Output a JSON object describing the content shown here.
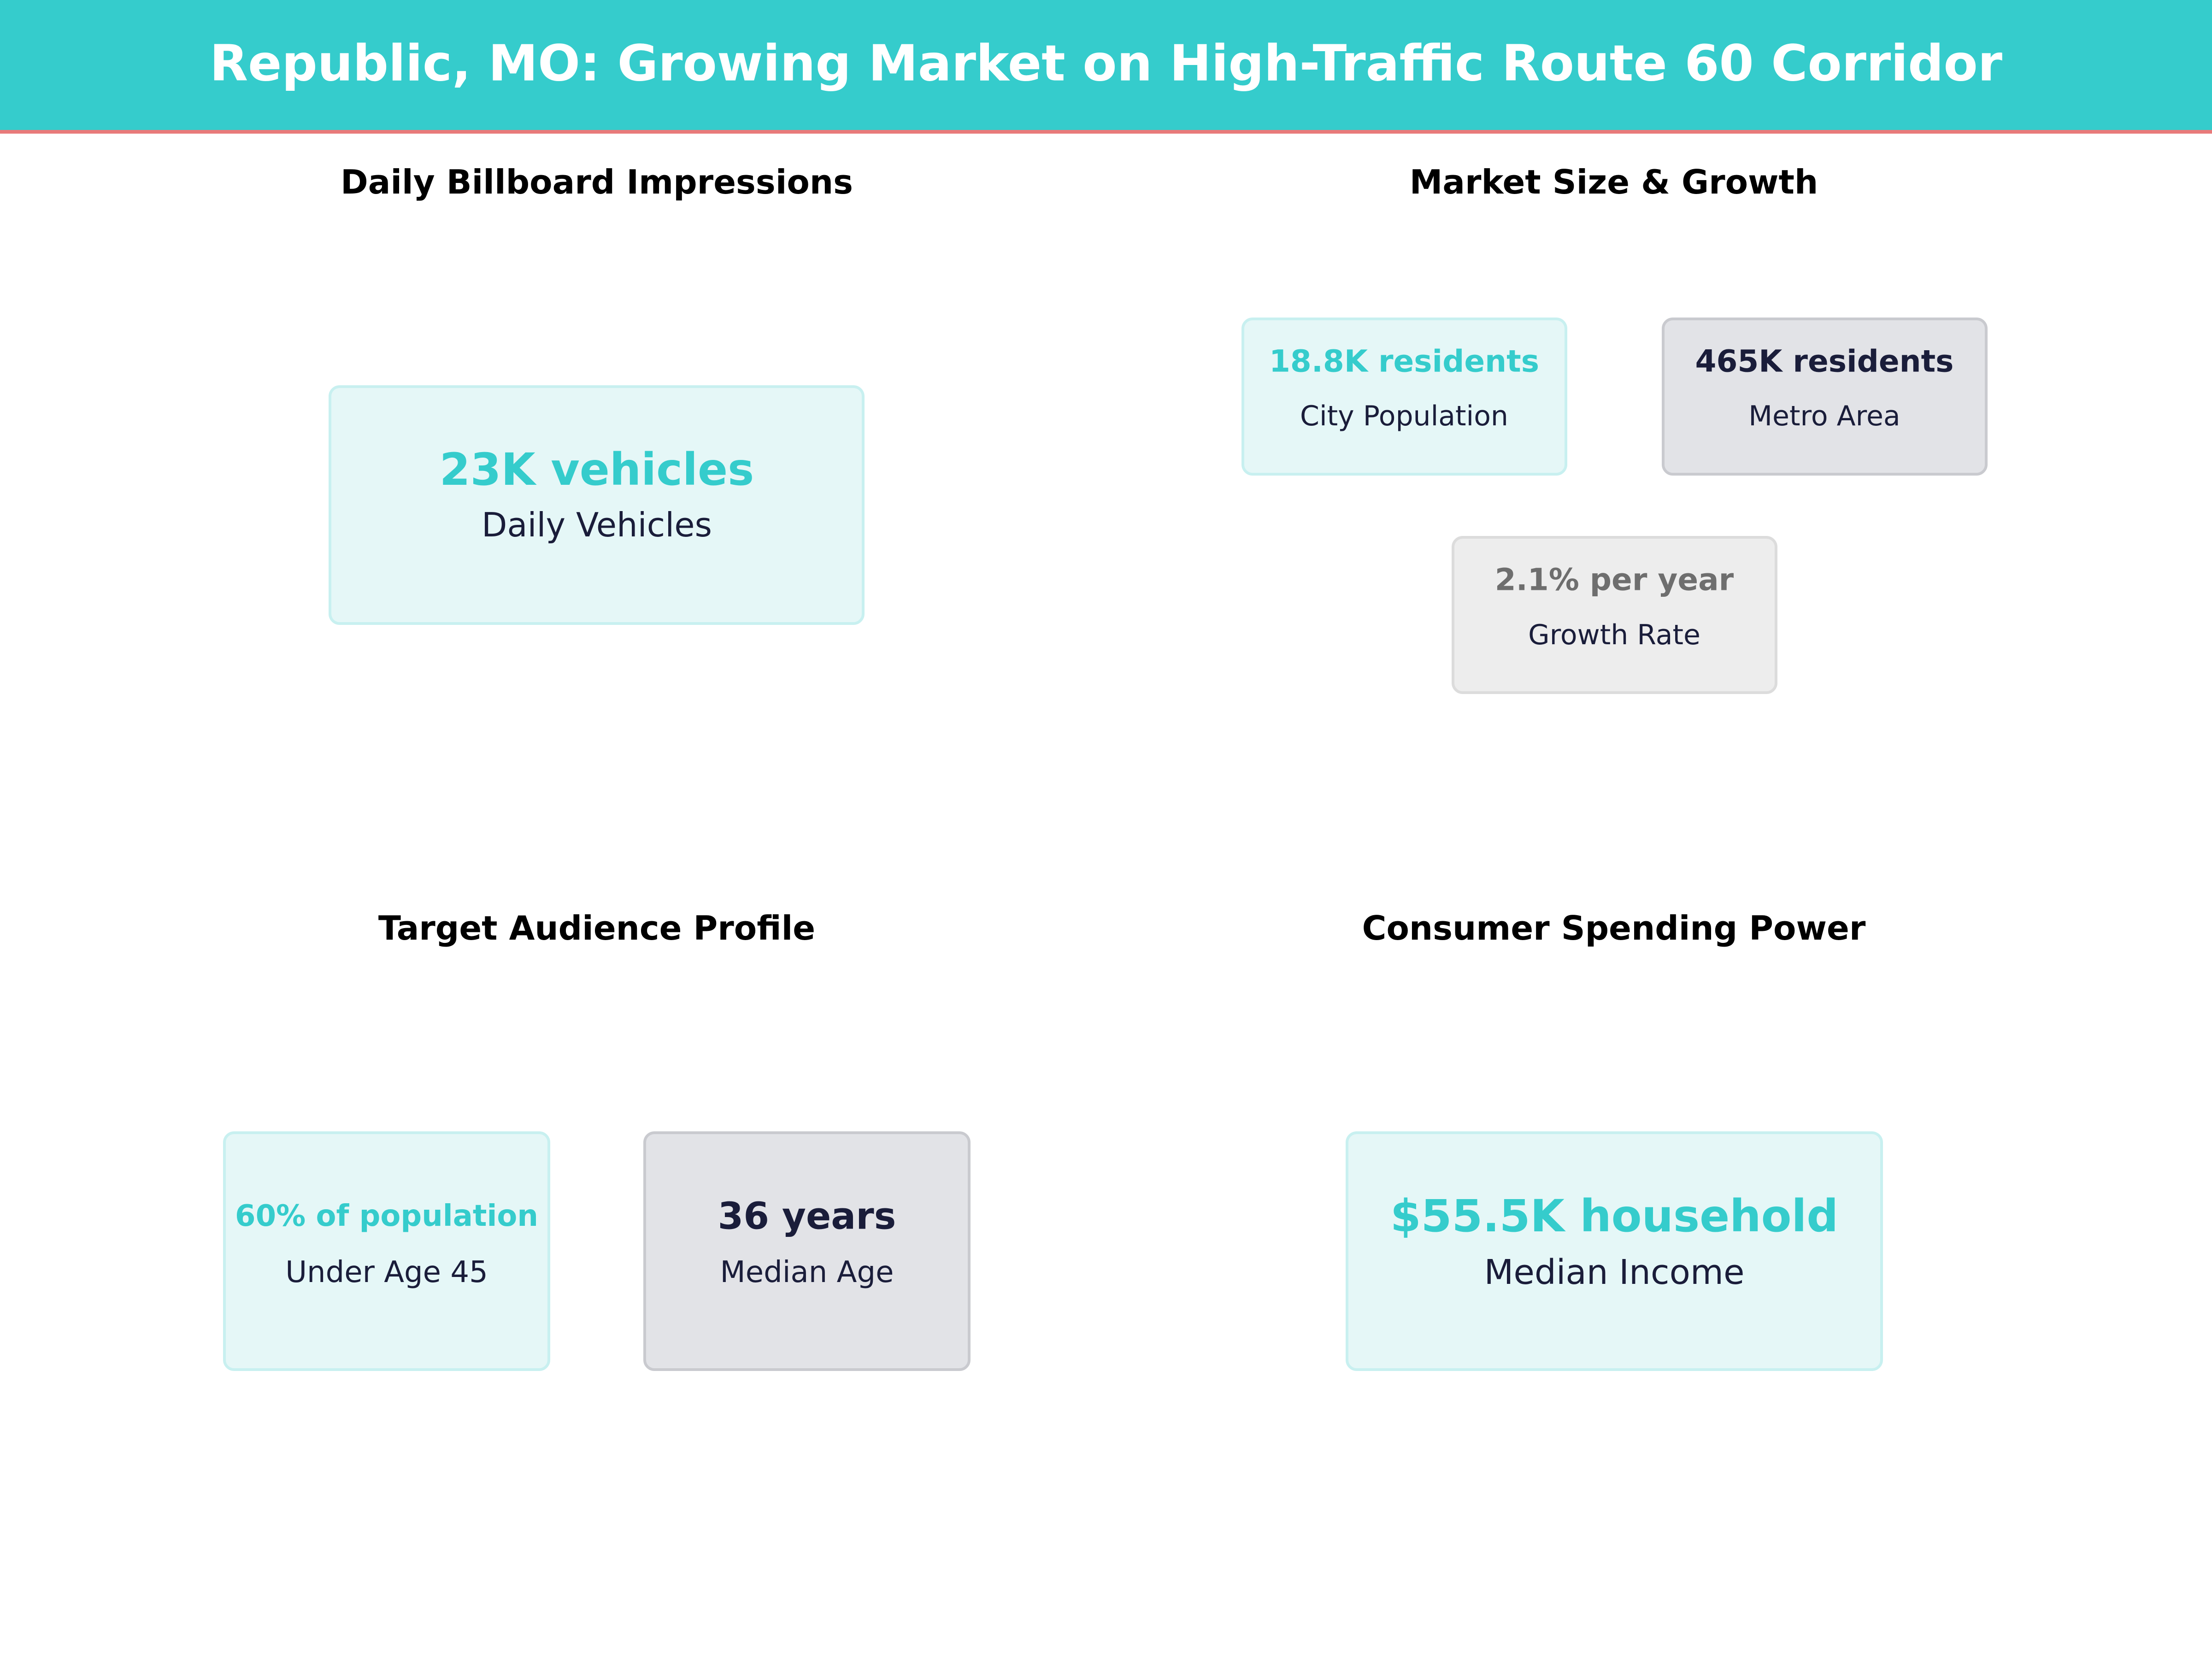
{
  "header": {
    "title": "Republic, MO: Growing Market on High-Traffic Route 60 Corridor"
  },
  "panels": [
    {
      "title": "Daily Billboard Impressions",
      "cards": [
        {
          "value": "23K vehicles",
          "label": "Daily Vehicles"
        }
      ]
    },
    {
      "title": "Market Size & Growth",
      "cards": [
        {
          "value": "18.8K residents",
          "label": "City Population"
        },
        {
          "value": "465K residents",
          "label": "Metro Area"
        },
        {
          "value": "2.1% per year",
          "label": "Growth Rate"
        }
      ]
    },
    {
      "title": "Target Audience Profile",
      "cards": [
        {
          "value": "60% of population",
          "label": "Under Age 45"
        },
        {
          "value": "36 years",
          "label": "Median Age"
        }
      ]
    },
    {
      "title": "Consumer Spending Power",
      "cards": [
        {
          "value": "$55.5K household",
          "label": "Median Income"
        }
      ]
    }
  ]
}
